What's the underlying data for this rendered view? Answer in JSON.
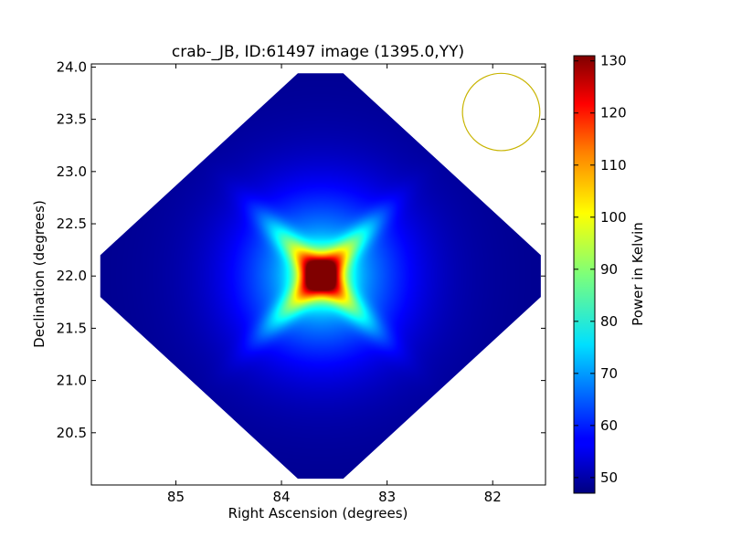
{
  "chart_data": {
    "type": "heatmap",
    "title": "crab-_JB, ID:61497 image (1395.0,YY)",
    "xlabel": "Right Ascension (degrees)",
    "ylabel": "Declination (degrees)",
    "xlim": [
      85.8,
      81.5
    ],
    "ylim": [
      20.0,
      24.03
    ],
    "x_inverted": true,
    "x_ticks": [
      85,
      84,
      83,
      82
    ],
    "y_ticks": [
      20.5,
      21.0,
      21.5,
      22.0,
      22.5,
      23.0,
      23.5,
      24.0
    ],
    "colorbar": {
      "label": "Power in Kelvin",
      "colormap": "jet",
      "range": [
        47,
        131
      ],
      "ticks": [
        50,
        60,
        70,
        80,
        90,
        100,
        110,
        120,
        130
      ]
    },
    "background_level": 48,
    "peak": {
      "ra": 83.63,
      "dec": 22.01,
      "value": 131
    },
    "coverage_diamond": {
      "center_ra": 83.63,
      "center_dec": 22.0,
      "half_width_ra": 2.15,
      "half_height_dec": 2.0
    },
    "beam_circle": {
      "ra": 81.92,
      "dec": 23.57,
      "radius_dec": 0.37,
      "color": "#c8b400"
    }
  }
}
